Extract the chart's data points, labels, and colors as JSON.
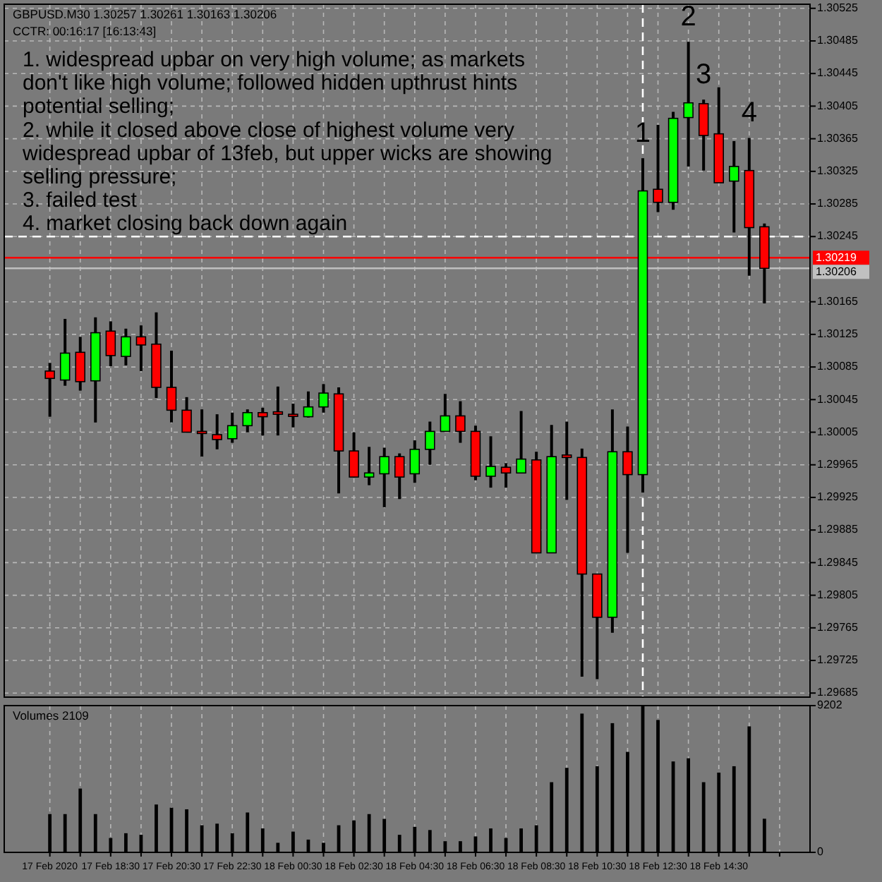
{
  "chart_data": [
    {
      "type": "candlestick",
      "title": "GBPUSD.M30  1.30257 1.30261 1.30163 1.30206",
      "subtitle": "CCTR: 00:16:17 [16:13:43]",
      "x": [
        "2020-02-17T16:30",
        "2020-02-17T17:00",
        "2020-02-17T17:30",
        "2020-02-17T18:00",
        "2020-02-17T18:30",
        "2020-02-17T19:00",
        "2020-02-17T19:30",
        "2020-02-17T20:00",
        "2020-02-17T20:30",
        "2020-02-17T21:00",
        "2020-02-17T21:30",
        "2020-02-17T22:00",
        "2020-02-17T22:30",
        "2020-02-17T23:00",
        "2020-02-17T23:30",
        "2020-02-18T00:00",
        "2020-02-18T00:30",
        "2020-02-18T01:00",
        "2020-02-18T01:30",
        "2020-02-18T02:00",
        "2020-02-18T02:30",
        "2020-02-18T03:00",
        "2020-02-18T03:30",
        "2020-02-18T04:00",
        "2020-02-18T04:30",
        "2020-02-18T05:00",
        "2020-02-18T05:30",
        "2020-02-18T06:00",
        "2020-02-18T06:30",
        "2020-02-18T07:00",
        "2020-02-18T07:30",
        "2020-02-18T08:00",
        "2020-02-18T08:30",
        "2020-02-18T09:00",
        "2020-02-18T09:30",
        "2020-02-18T10:00",
        "2020-02-18T10:30",
        "2020-02-18T11:00",
        "2020-02-18T11:30",
        "2020-02-18T12:00",
        "2020-02-18T12:30",
        "2020-02-18T13:00",
        "2020-02-18T13:30",
        "2020-02-18T14:00",
        "2020-02-18T14:30",
        "2020-02-18T15:00",
        "2020-02-18T15:30",
        "2020-02-18T16:00"
      ],
      "ohlc": [
        [
          1.3008,
          1.3009,
          1.30024,
          1.30071
        ],
        [
          1.30069,
          1.30144,
          1.30062,
          1.30102
        ],
        [
          1.30103,
          1.30122,
          1.30056,
          1.30067
        ],
        [
          1.30068,
          1.30146,
          1.30017,
          1.30127
        ],
        [
          1.30129,
          1.30141,
          1.30086,
          1.30099
        ],
        [
          1.30098,
          1.30132,
          1.30087,
          1.30122
        ],
        [
          1.30122,
          1.30136,
          1.3008,
          1.30112
        ],
        [
          1.30113,
          1.30152,
          1.30047,
          1.3006
        ],
        [
          1.3006,
          1.30105,
          1.30017,
          1.30032
        ],
        [
          1.30032,
          1.30048,
          1.30005,
          1.30005
        ],
        [
          1.30006,
          1.30033,
          1.29975,
          1.30004
        ],
        [
          1.30002,
          1.30027,
          1.29984,
          1.29996
        ],
        [
          1.29997,
          1.30029,
          1.29992,
          1.30013
        ],
        [
          1.30013,
          1.30033,
          1.30005,
          1.30029
        ],
        [
          1.30029,
          1.30035,
          1.30001,
          1.30024
        ],
        [
          1.3003,
          1.30061,
          1.30001,
          1.30027
        ],
        [
          1.30027,
          1.3004,
          1.30011,
          1.30025
        ],
        [
          1.30024,
          1.30055,
          1.30023,
          1.30036
        ],
        [
          1.30036,
          1.30064,
          1.30029,
          1.30053
        ],
        [
          1.30052,
          1.3006,
          1.2993,
          1.29982
        ],
        [
          1.29982,
          1.30005,
          1.2995,
          1.2995
        ],
        [
          1.2995,
          1.29987,
          1.2994,
          1.29955
        ],
        [
          1.29954,
          1.29986,
          1.29913,
          1.29975
        ],
        [
          1.29975,
          1.29979,
          1.29923,
          1.2995
        ],
        [
          1.29954,
          1.29995,
          1.29943,
          1.29984
        ],
        [
          1.29984,
          1.30018,
          1.29965,
          1.30006
        ],
        [
          1.30006,
          1.30052,
          1.30006,
          1.30025
        ],
        [
          1.30025,
          1.30043,
          1.29992,
          1.30006
        ],
        [
          1.30006,
          1.30013,
          1.29946,
          1.29951
        ],
        [
          1.29951,
          1.3,
          1.29937,
          1.29963
        ],
        [
          1.29962,
          1.29967,
          1.29937,
          1.29955
        ],
        [
          1.29955,
          1.30031,
          1.29955,
          1.29972
        ],
        [
          1.29971,
          1.29981,
          1.29857,
          1.29857
        ],
        [
          1.29857,
          1.30014,
          1.29857,
          1.29975
        ],
        [
          1.29977,
          1.30018,
          1.29922,
          1.29974
        ],
        [
          1.29974,
          1.29985,
          1.29705,
          1.29831
        ],
        [
          1.29831,
          1.29831,
          1.29702,
          1.29778
        ],
        [
          1.29778,
          1.30033,
          1.29759,
          1.29981
        ],
        [
          1.29981,
          1.30012,
          1.29857,
          1.29953
        ],
        [
          1.29953,
          1.30341,
          1.29931,
          1.30301
        ],
        [
          1.30303,
          1.30382,
          1.30275,
          1.30287
        ],
        [
          1.30287,
          1.30398,
          1.30278,
          1.3039
        ],
        [
          1.30391,
          1.30484,
          1.30331,
          1.30409
        ],
        [
          1.30408,
          1.30413,
          1.30326,
          1.30369
        ],
        [
          1.30371,
          1.30428,
          1.30311,
          1.30311
        ],
        [
          1.30313,
          1.30362,
          1.3025,
          1.30331
        ],
        [
          1.30326,
          1.30366,
          1.30197,
          1.30256
        ],
        [
          1.30257,
          1.30261,
          1.30163,
          1.30206
        ]
      ],
      "colors": [
        "#ff0000",
        "#00ff00",
        "#ff0000",
        "#00ff00",
        "#ff0000",
        "#00ff00",
        "#ff0000",
        "#ff0000",
        "#ff0000",
        "#ff0000",
        "#ff0000",
        "#ff0000",
        "#00ff00",
        "#00ff00",
        "#ff0000",
        "#ff0000",
        "#ff0000",
        "#00ff00",
        "#00ff00",
        "#ff0000",
        "#ff0000",
        "#00ff00",
        "#00ff00",
        "#ff0000",
        "#00ff00",
        "#00ff00",
        "#00ff00",
        "#ff0000",
        "#ff0000",
        "#00ff00",
        "#ff0000",
        "#00ff00",
        "#ff0000",
        "#00ff00",
        "#ff0000",
        "#ff0000",
        "#ff0000",
        "#00ff00",
        "#ff0000",
        "#00ff00",
        "#ff0000",
        "#00ff00",
        "#00ff00",
        "#ff0000",
        "#ff0000",
        "#00ff00",
        "#ff0000",
        "#ff0000"
      ],
      "xlim": [
        "2020-02-17T15:00",
        "2020-02-18T17:30"
      ],
      "xticks": [
        "2020-02-17T16:30",
        "2020-02-17T17:30",
        "2020-02-17T18:30",
        "2020-02-17T19:30",
        "2020-02-17T20:30",
        "2020-02-17T21:30",
        "2020-02-17T22:30",
        "2020-02-17T23:30",
        "2020-02-18T00:30",
        "2020-02-18T01:30",
        "2020-02-18T02:30",
        "2020-02-18T03:30",
        "2020-02-18T04:30",
        "2020-02-18T05:30",
        "2020-02-18T06:30",
        "2020-02-18T07:30",
        "2020-02-18T08:30",
        "2020-02-18T09:30",
        "2020-02-18T10:30",
        "2020-02-18T11:30",
        "2020-02-18T12:30",
        "2020-02-18T13:30",
        "2020-02-18T14:30",
        "2020-02-18T15:30",
        "2020-02-18T16:30"
      ],
      "ylim": [
        1.2968,
        1.3053
      ],
      "yticks": [
        1.30525,
        1.30485,
        1.30445,
        1.30405,
        1.30365,
        1.30325,
        1.30285,
        1.30245,
        1.30165,
        1.30125,
        1.30085,
        1.30045,
        1.30005,
        1.29965,
        1.29925,
        1.29885,
        1.29845,
        1.29805,
        1.29765,
        1.29725,
        1.29685
      ],
      "grid": true,
      "tick_labels": "y",
      "ref_lines": [
        {
          "axis": "x",
          "value": "2020-02-18T12:00",
          "color": "#ffffff",
          "line_style": "dashed"
        },
        {
          "axis": "y",
          "value": 1.30245,
          "color": "#ffffff",
          "line_style": "dashed"
        },
        {
          "axis": "y",
          "value": 1.30219,
          "label": "1.30219",
          "color": "#ff0000"
        },
        {
          "axis": "y",
          "value": 1.30206,
          "label": "1.30206",
          "color": "#c0c0c0"
        }
      ],
      "annotations": [
        "1. widespread upbar on very high volume; as markets don't like high volume; followed hidden upthrust hints potential selling;",
        "2. while it closed above close of highest volume very widespread upbar of 13feb, but upper wicks are showing selling pressure;",
        "3. failed test",
        "4. market closing back down again",
        {
          "text": "1",
          "x": "2020-02-18T12:00",
          "y": 1.30341
        },
        {
          "text": "2",
          "x": "2020-02-18T13:30",
          "y": 1.30484
        },
        {
          "text": "3",
          "x": "2020-02-18T14:00",
          "y": 1.30413
        },
        {
          "text": "4",
          "x": "2020-02-18T15:30",
          "y": 1.30366
        }
      ]
    },
    {
      "type": "bar",
      "title": "Volumes 2109",
      "color": "#000000",
      "x": [
        "2020-02-17T16:30",
        "2020-02-17T17:00",
        "2020-02-17T17:30",
        "2020-02-17T18:00",
        "2020-02-17T18:30",
        "2020-02-17T19:00",
        "2020-02-17T19:30",
        "2020-02-17T20:00",
        "2020-02-17T20:30",
        "2020-02-17T21:00",
        "2020-02-17T21:30",
        "2020-02-17T22:00",
        "2020-02-17T22:30",
        "2020-02-17T23:00",
        "2020-02-17T23:30",
        "2020-02-18T00:00",
        "2020-02-18T00:30",
        "2020-02-18T01:00",
        "2020-02-18T01:30",
        "2020-02-18T02:00",
        "2020-02-18T02:30",
        "2020-02-18T03:00",
        "2020-02-18T03:30",
        "2020-02-18T04:00",
        "2020-02-18T04:30",
        "2020-02-18T05:00",
        "2020-02-18T05:30",
        "2020-02-18T06:00",
        "2020-02-18T06:30",
        "2020-02-18T07:00",
        "2020-02-18T07:30",
        "2020-02-18T08:00",
        "2020-02-18T08:30",
        "2020-02-18T09:00",
        "2020-02-18T09:30",
        "2020-02-18T10:00",
        "2020-02-18T10:30",
        "2020-02-18T11:00",
        "2020-02-18T11:30",
        "2020-02-18T12:00",
        "2020-02-18T12:30",
        "2020-02-18T13:00",
        "2020-02-18T13:30",
        "2020-02-18T14:00",
        "2020-02-18T14:30",
        "2020-02-18T15:00",
        "2020-02-18T15:30",
        "2020-02-18T16:00"
      ],
      "values": [
        2400,
        2400,
        4000,
        2400,
        900,
        1200,
        1100,
        3000,
        2800,
        2700,
        1700,
        1800,
        1200,
        2500,
        1500,
        600,
        1300,
        800,
        600,
        1700,
        2000,
        2400,
        2100,
        1100,
        1600,
        1400,
        700,
        700,
        1000,
        1500,
        900,
        1500,
        1700,
        4400,
        5300,
        8700,
        5400,
        8100,
        6300,
        9202,
        8300,
        5700,
        5900,
        4400,
        5000,
        5400,
        7900,
        2109
      ],
      "xlim": [
        "2020-02-17T15:00",
        "2020-02-18T17:30"
      ],
      "xticks": [
        {
          "value": "2020-02-17T16:30",
          "label": "17 Feb 2020"
        },
        {
          "value": "2020-02-17T17:30",
          "label": null
        },
        {
          "value": "2020-02-17T18:30",
          "label": "17 Feb 18:30"
        },
        {
          "value": "2020-02-17T19:30",
          "label": null
        },
        {
          "value": "2020-02-17T20:30",
          "label": "17 Feb 20:30"
        },
        {
          "value": "2020-02-17T21:30",
          "label": null
        },
        {
          "value": "2020-02-17T22:30",
          "label": "17 Feb 22:30"
        },
        {
          "value": "2020-02-17T23:30",
          "label": null
        },
        {
          "value": "2020-02-18T00:30",
          "label": "18 Feb 00:30"
        },
        {
          "value": "2020-02-18T01:30",
          "label": null
        },
        {
          "value": "2020-02-18T02:30",
          "label": "18 Feb 02:30"
        },
        {
          "value": "2020-02-18T03:30",
          "label": null
        },
        {
          "value": "2020-02-18T04:30",
          "label": "18 Feb 04:30"
        },
        {
          "value": "2020-02-18T05:30",
          "label": null
        },
        {
          "value": "2020-02-18T06:30",
          "label": "18 Feb 06:30"
        },
        {
          "value": "2020-02-18T07:30",
          "label": null
        },
        {
          "value": "2020-02-18T08:30",
          "label": "18 Feb 08:30"
        },
        {
          "value": "2020-02-18T09:30",
          "label": null
        },
        {
          "value": "2020-02-18T10:30",
          "label": "18 Feb 10:30"
        },
        {
          "value": "2020-02-18T11:30",
          "label": null
        },
        {
          "value": "2020-02-18T12:30",
          "label": "18 Feb 12:30"
        },
        {
          "value": "2020-02-18T13:30",
          "label": null
        },
        {
          "value": "2020-02-18T14:30",
          "label": "18 Feb 14:30"
        },
        {
          "value": "2020-02-18T15:30",
          "label": null
        },
        {
          "value": "2020-02-18T16:30",
          "label": null
        }
      ],
      "ylim": [
        0,
        9202
      ],
      "yticks": [
        0,
        9202
      ],
      "grid": "x"
    }
  ]
}
